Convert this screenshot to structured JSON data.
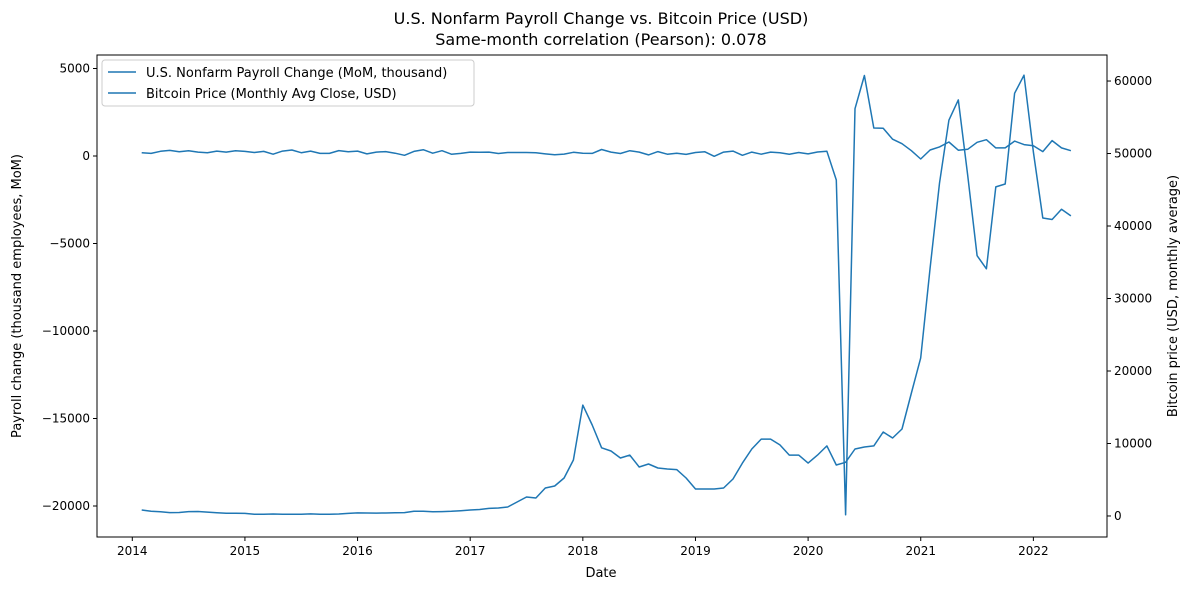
{
  "chart_data": {
    "type": "line",
    "title": "U.S. Nonfarm Payroll Change vs. Bitcoin Price (USD)",
    "subtitle": "Same-month correlation (Pearson): 0.078",
    "xlabel": "Date",
    "ylabel_left": "Payroll change (thousand employees, MoM)",
    "ylabel_right": "Bitcoin price (USD, monthly average)",
    "x_ticks": [
      "2014",
      "2015",
      "2016",
      "2017",
      "2018",
      "2019",
      "2020",
      "2021",
      "2022"
    ],
    "y_left_ticks": [
      5000,
      0,
      -5000,
      -10000,
      -15000,
      -20000
    ],
    "y_right_ticks": [
      0,
      10000,
      20000,
      30000,
      40000,
      50000,
      60000
    ],
    "xlim": [
      "2013-09",
      "2022-09"
    ],
    "ylim_left": [
      -21771,
      5771
    ],
    "ylim_right": [
      -2900,
      63590
    ],
    "grid": false,
    "legend_placement": "upper-left",
    "color": "#1f77b4",
    "x_start": "2014-01",
    "x_end": "2022-04",
    "x_frequency": "monthly",
    "series": [
      {
        "name": "U.S. Nonfarm Payroll Change (MoM, thousand)",
        "axis": "left",
        "values": [
          190,
          150,
          270,
          320,
          240,
          300,
          220,
          190,
          280,
          220,
          300,
          260,
          200,
          260,
          100,
          280,
          340,
          190,
          280,
          150,
          150,
          310,
          240,
          280,
          120,
          220,
          250,
          160,
          40,
          260,
          360,
          160,
          300,
          100,
          150,
          220,
          210,
          220,
          140,
          200,
          200,
          200,
          180,
          120,
          70,
          110,
          210,
          160,
          150,
          370,
          220,
          140,
          300,
          220,
          60,
          250,
          100,
          160,
          90,
          200,
          240,
          -20,
          220,
          280,
          40,
          220,
          100,
          220,
          190,
          100,
          200,
          120,
          230,
          270,
          -1370,
          -20500,
          2700,
          4600,
          1600,
          1580,
          960,
          700,
          300,
          -170,
          340,
          520,
          800,
          330,
          380,
          780,
          930,
          460,
          460,
          850,
          650,
          590,
          250,
          880,
          460,
          300
        ]
      },
      {
        "name": "Bitcoin Price (Monthly Avg Close, USD)",
        "axis": "right",
        "values": [
          830,
          650,
          580,
          470,
          480,
          610,
          620,
          530,
          450,
          380,
          380,
          350,
          250,
          240,
          270,
          230,
          240,
          240,
          280,
          250,
          235,
          270,
          360,
          420,
          410,
          400,
          415,
          435,
          460,
          640,
          660,
          580,
          610,
          640,
          730,
          830,
          900,
          1050,
          1100,
          1240,
          1930,
          2620,
          2480,
          3860,
          4140,
          5240,
          7720,
          15300,
          12550,
          9400,
          8970,
          8000,
          8400,
          6760,
          7170,
          6620,
          6480,
          6400,
          5240,
          3720,
          3720,
          3720,
          3860,
          5100,
          7300,
          9240,
          10600,
          10600,
          9800,
          8400,
          8400,
          7300,
          8400,
          9660,
          7030,
          7400,
          9240,
          9520,
          9660,
          11580,
          10750,
          12000,
          16960,
          21800,
          34200,
          45900,
          54600,
          57400,
          47000,
          35900,
          34100,
          45400,
          45800,
          58300,
          60800,
          50200,
          41100,
          40900,
          42300,
          41400
        ]
      }
    ]
  }
}
